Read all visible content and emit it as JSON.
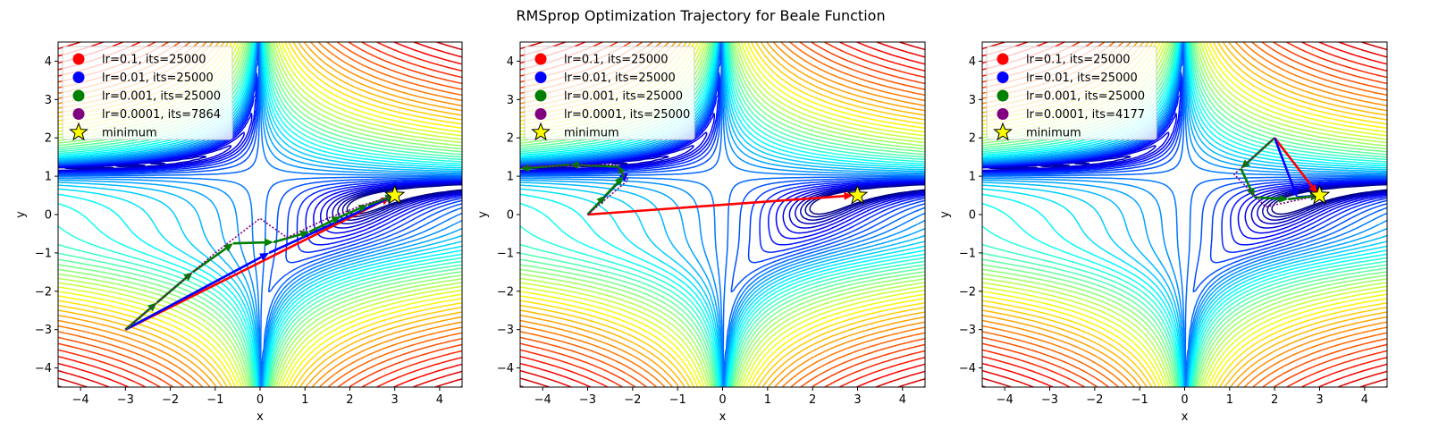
{
  "figure": {
    "title": "RMSprop Optimization Trajectory for Beale Function"
  },
  "chart_data": [
    {
      "type": "contour",
      "xlabel": "x",
      "ylabel": "y",
      "xlim": [
        -4.5,
        4.5
      ],
      "ylim": [
        -4.5,
        4.5
      ],
      "xticks": [
        -4,
        -3,
        -2,
        -1,
        0,
        1,
        2,
        3,
        4
      ],
      "yticks": [
        -4,
        -3,
        -2,
        -1,
        0,
        1,
        2,
        3,
        4
      ],
      "start": [
        -3,
        -3
      ],
      "minimum": [
        3,
        0.5
      ],
      "legend": {
        "placement": "upper-left",
        "entries": [
          {
            "label": "lr=0.1, its=25000",
            "color": "#ff0000",
            "marker": "circle"
          },
          {
            "label": "lr=0.01, its=25000",
            "color": "#0000ff",
            "marker": "circle"
          },
          {
            "label": "lr=0.001, its=25000",
            "color": "#008000",
            "marker": "circle"
          },
          {
            "label": "lr=0.0001, its=7864",
            "color": "#800080",
            "marker": "circle"
          },
          {
            "label": "minimum",
            "color": "#ffff00",
            "marker": "star"
          }
        ]
      },
      "series": [
        {
          "color": "#ff0000",
          "style": "arrows",
          "points": [
            [
              -3,
              -3
            ],
            [
              2.9,
              0.45
            ],
            [
              3,
              0.5
            ]
          ]
        },
        {
          "color": "#0000ff",
          "style": "arrows",
          "points": [
            [
              -3,
              -3
            ],
            [
              0.2,
              -1.0
            ],
            [
              3,
              0.5
            ]
          ]
        },
        {
          "color": "#008000",
          "style": "arrows",
          "points": [
            [
              -3,
              -3
            ],
            [
              -2.3,
              -2.3
            ],
            [
              -1.5,
              -1.5
            ],
            [
              -0.6,
              -0.75
            ],
            [
              0.3,
              -0.72
            ],
            [
              1.1,
              -0.45
            ],
            [
              1.8,
              -0.05
            ],
            [
              2.4,
              0.25
            ],
            [
              3,
              0.5
            ]
          ]
        },
        {
          "color": "#800080",
          "style": "dotted",
          "points": [
            [
              -3,
              -3
            ],
            [
              -2,
              -2
            ],
            [
              -1,
              -1
            ],
            [
              0,
              -0.1
            ],
            [
              0.6,
              -0.6
            ],
            [
              1.5,
              -0.1
            ],
            [
              2.3,
              0.25
            ],
            [
              3,
              0.5
            ]
          ]
        }
      ]
    },
    {
      "type": "contour",
      "xlabel": "x",
      "ylabel": "y",
      "xlim": [
        -4.5,
        4.5
      ],
      "ylim": [
        -4.5,
        4.5
      ],
      "xticks": [
        -4,
        -3,
        -2,
        -1,
        0,
        1,
        2,
        3,
        4
      ],
      "yticks": [
        -4,
        -3,
        -2,
        -1,
        0,
        1,
        2,
        3,
        4
      ],
      "start": [
        -3,
        0
      ],
      "minimum": [
        3,
        0.5
      ],
      "legend": {
        "placement": "upper-left",
        "entries": [
          {
            "label": "lr=0.1, its=25000",
            "color": "#ff0000",
            "marker": "circle"
          },
          {
            "label": "lr=0.01, its=25000",
            "color": "#0000ff",
            "marker": "circle"
          },
          {
            "label": "lr=0.001, its=25000",
            "color": "#008000",
            "marker": "circle"
          },
          {
            "label": "lr=0.0001, its=25000",
            "color": "#800080",
            "marker": "circle"
          },
          {
            "label": "minimum",
            "color": "#ffff00",
            "marker": "star"
          }
        ]
      },
      "series": [
        {
          "color": "#ff0000",
          "style": "arrows",
          "points": [
            [
              -3,
              0
            ],
            [
              2.9,
              0.5
            ],
            [
              3,
              0.4
            ]
          ]
        },
        {
          "color": "#0000ff",
          "style": "arrows",
          "points": [
            [
              -3,
              0
            ],
            [
              -2.1,
              1.1
            ]
          ]
        },
        {
          "color": "#008000",
          "style": "arrows",
          "points": [
            [
              -3,
              0
            ],
            [
              -2.6,
              0.5
            ],
            [
              -2.2,
              1.0
            ],
            [
              -2.3,
              1.25
            ],
            [
              -3.4,
              1.3
            ],
            [
              -4.5,
              1.2
            ]
          ]
        },
        {
          "color": "#800080",
          "style": "dotted",
          "points": [
            [
              -3,
              0
            ],
            [
              -2.1,
              0.9
            ],
            [
              -2.4,
              1.3
            ],
            [
              -4.5,
              1.25
            ]
          ]
        }
      ]
    },
    {
      "type": "contour",
      "xlabel": "x",
      "ylabel": "y",
      "xlim": [
        -4.5,
        4.5
      ],
      "ylim": [
        -4.5,
        4.5
      ],
      "xticks": [
        -4,
        -3,
        -2,
        -1,
        0,
        1,
        2,
        3,
        4
      ],
      "yticks": [
        -4,
        -3,
        -2,
        -1,
        0,
        1,
        2,
        3,
        4
      ],
      "start": [
        2,
        2
      ],
      "minimum": [
        3,
        0.5
      ],
      "legend": {
        "placement": "upper-left",
        "entries": [
          {
            "label": "lr=0.1, its=25000",
            "color": "#ff0000",
            "marker": "circle"
          },
          {
            "label": "lr=0.01, its=25000",
            "color": "#0000ff",
            "marker": "circle"
          },
          {
            "label": "lr=0.001, its=25000",
            "color": "#008000",
            "marker": "circle"
          },
          {
            "label": "lr=0.0001, its=4177",
            "color": "#800080",
            "marker": "circle"
          },
          {
            "label": "minimum",
            "color": "#ffff00",
            "marker": "star"
          }
        ]
      },
      "series": [
        {
          "color": "#ff0000",
          "style": "arrows",
          "points": [
            [
              2,
              2
            ],
            [
              2.95,
              0.55
            ],
            [
              3,
              0.5
            ]
          ]
        },
        {
          "color": "#0000ff",
          "style": "arrows",
          "points": [
            [
              2,
              2
            ],
            [
              2.5,
              0.45
            ],
            [
              3,
              0.5
            ]
          ]
        },
        {
          "color": "#008000",
          "style": "arrows",
          "points": [
            [
              2,
              2
            ],
            [
              1.25,
              1.2
            ],
            [
              1.55,
              0.45
            ],
            [
              2.3,
              0.4
            ],
            [
              3,
              0.5
            ]
          ]
        },
        {
          "color": "#800080",
          "style": "dotted",
          "points": [
            [
              2,
              2
            ],
            [
              1.1,
              1.05
            ],
            [
              1.8,
              0.2
            ],
            [
              3,
              0.5
            ]
          ]
        }
      ]
    }
  ]
}
